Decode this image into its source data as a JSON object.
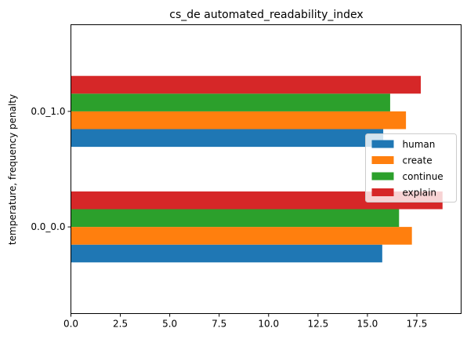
{
  "chart_data": {
    "type": "bar",
    "orientation": "horizontal",
    "title": "cs_de automated_readability_index",
    "xlabel": "",
    "ylabel": "temperature, frequency penalty",
    "categories": [
      "0.0_0.0",
      "0.0_1.0"
    ],
    "series": [
      {
        "name": "human",
        "color": "#1f77b4",
        "values": [
          15.75,
          15.8
        ]
      },
      {
        "name": "create",
        "color": "#ff7f0e",
        "values": [
          17.25,
          16.95
        ]
      },
      {
        "name": "continue",
        "color": "#2ca02c",
        "values": [
          16.6,
          16.15
        ]
      },
      {
        "name": "explain",
        "color": "#d62728",
        "values": [
          18.8,
          17.7
        ]
      }
    ],
    "xlim": [
      0,
      19.74
    ],
    "xticks": [
      "0.0",
      "2.5",
      "5.0",
      "7.5",
      "10.0",
      "12.5",
      "15.0",
      "17.5"
    ],
    "grid": false,
    "legend_position": "center-right"
  }
}
